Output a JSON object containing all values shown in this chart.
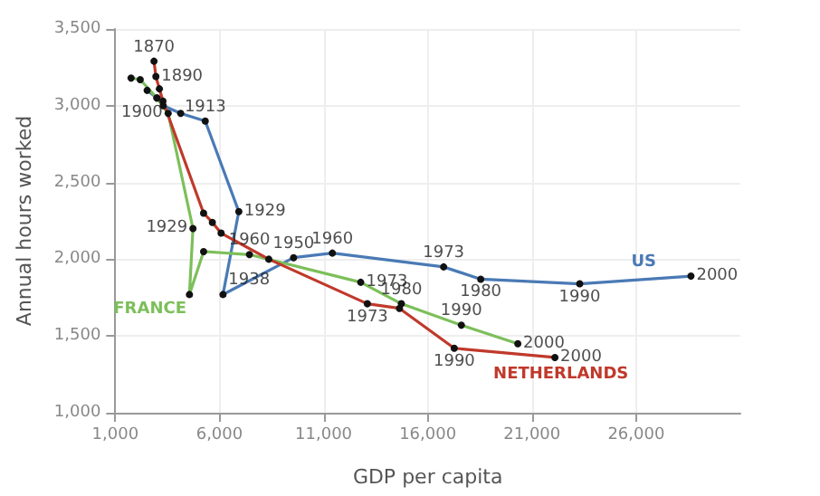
{
  "chart_data": {
    "type": "line",
    "xlabel": "GDP per capita",
    "ylabel": "Annual hours worked",
    "xlim": [
      1000,
      31000
    ],
    "xticks": [
      {
        "value": 1000,
        "label": "1,000"
      },
      {
        "value": 6000,
        "label": "6,000"
      },
      {
        "value": 11000,
        "label": "11,000"
      },
      {
        "value": 16000,
        "label": "16,000"
      },
      {
        "value": 21000,
        "label": "21,000"
      },
      {
        "value": 26000,
        "label": "26,000"
      }
    ],
    "ylim": [
      1000,
      3500
    ],
    "yticks": [
      {
        "value": 1000,
        "label": "1,000"
      },
      {
        "value": 1500,
        "label": "1,500"
      },
      {
        "value": 2000,
        "label": "2,000"
      },
      {
        "value": 2500,
        "label": "2,500"
      },
      {
        "value": 3000,
        "label": "3,000"
      },
      {
        "value": 3500,
        "label": "3,500"
      }
    ],
    "grid": true,
    "legend": false,
    "marker": "circle",
    "line_style": "solid",
    "series": [
      {
        "name": "US",
        "color": "#4a7ab5",
        "x": [
          2530,
          3000,
          3300,
          4140,
          5320,
          6930,
          6170,
          9560,
          11420,
          16760,
          18540,
          23290,
          28630
        ],
        "values": [
          3100,
          3050,
          3000,
          2950,
          2900,
          2310,
          1770,
          2010,
          2040,
          1950,
          1870,
          1840,
          1890
        ]
      },
      {
        "name": "FRANCE",
        "color": "#7cbf5a",
        "x": [
          1760,
          2200,
          3000,
          3540,
          4730,
          4560,
          5240,
          7440,
          12780,
          14730,
          17610,
          20320
        ],
        "values": [
          3180,
          3170,
          3050,
          2950,
          2200,
          1770,
          2050,
          2030,
          1850,
          1710,
          1570,
          1450
        ]
      },
      {
        "name": "NETHERLANDS",
        "color": "#c0392b",
        "x": [
          2860,
          2950,
          3120,
          3290,
          5240,
          5660,
          6080,
          8370,
          13100,
          14640,
          17270,
          22100
        ],
        "values": [
          3290,
          3190,
          3110,
          3030,
          2300,
          2240,
          2170,
          2000,
          1710,
          1680,
          1420,
          1360
        ]
      }
    ],
    "annotations": [
      {
        "text": "1870",
        "x": 2860,
        "y": 3290
      },
      {
        "text": "1890",
        "x": 2950,
        "y": 3190
      },
      {
        "text": "1900",
        "x": 3540,
        "y": 2950
      },
      {
        "text": "1913",
        "x": 5320,
        "y": 2900
      },
      {
        "text": "1929",
        "x": 6930,
        "y": 2310
      },
      {
        "text": "1929",
        "x": 4730,
        "y": 2200
      },
      {
        "text": "1960",
        "x": 7440,
        "y": 2030
      },
      {
        "text": "1950",
        "x": 9560,
        "y": 2010
      },
      {
        "text": "1960",
        "x": 11420,
        "y": 2040
      },
      {
        "text": "1938",
        "x": 6170,
        "y": 1770
      },
      {
        "text": "1973",
        "x": 16760,
        "y": 1950
      },
      {
        "text": "1973",
        "x": 12780,
        "y": 1850
      },
      {
        "text": "1973",
        "x": 13100,
        "y": 1710
      },
      {
        "text": "1980",
        "x": 14730,
        "y": 1710
      },
      {
        "text": "1980",
        "x": 18540,
        "y": 1870
      },
      {
        "text": "1990",
        "x": 23290,
        "y": 1840
      },
      {
        "text": "1990",
        "x": 17610,
        "y": 1570
      },
      {
        "text": "1990",
        "x": 17270,
        "y": 1420
      },
      {
        "text": "2000",
        "x": 28630,
        "y": 1890
      },
      {
        "text": "2000",
        "x": 20320,
        "y": 1450
      },
      {
        "text": "2000",
        "x": 22100,
        "y": 1360
      }
    ]
  }
}
